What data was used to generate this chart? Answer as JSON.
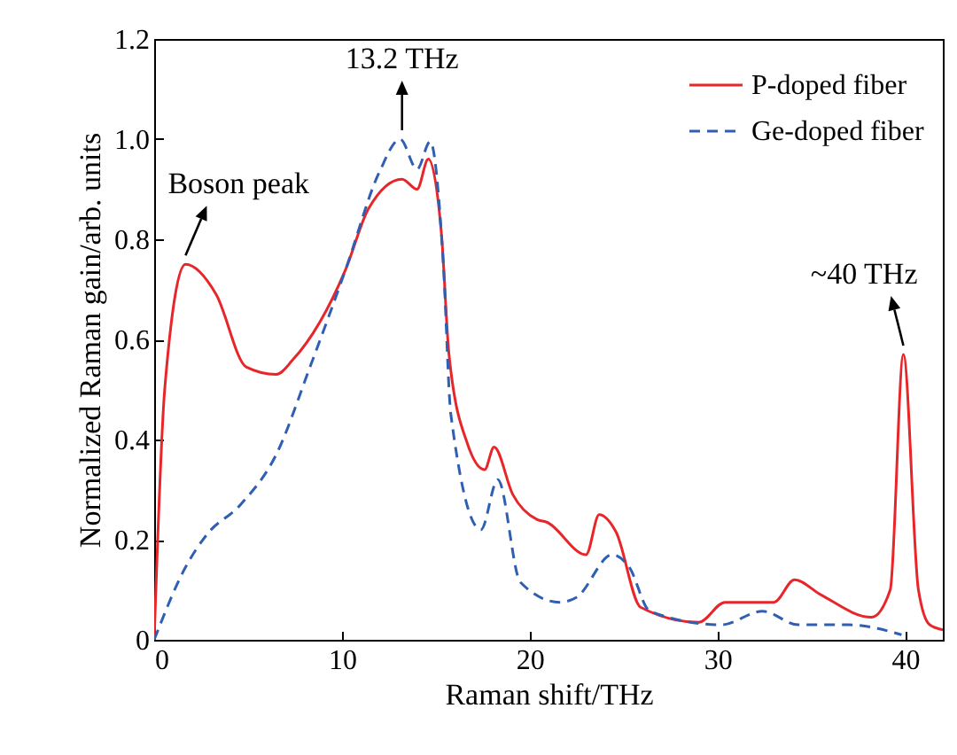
{
  "chart_data": {
    "type": "line",
    "xlabel": "Raman shift/THz",
    "ylabel": "Normalized Raman gain/arb. units",
    "xlim": [
      0,
      42
    ],
    "xticks": [
      0,
      10,
      20,
      30,
      40
    ],
    "ylim": [
      0,
      1.2
    ],
    "yticks": [
      0,
      0.2,
      0.4,
      0.6,
      0.8,
      {
        "value": 1,
        "label": "1.0"
      },
      1.2
    ],
    "grid": false,
    "legend": "top right",
    "annotations": [
      {
        "text": "Boson peak",
        "x": 1.67,
        "y": 0.75
      },
      {
        "text": "13.2 THz",
        "x": 13.2,
        "y": 1.0
      },
      {
        "text": "~40 THz",
        "x": 39.9,
        "y": 0.57
      }
    ],
    "series": [
      {
        "name": "P-doped fiber",
        "color": "#e8262a",
        "line_style": "solid",
        "x": [
          0,
          0.56,
          1.67,
          3.3,
          4.9,
          6.5,
          7.4,
          10.2,
          11.4,
          13.2,
          14,
          14.6,
          15.3,
          15.7,
          16.7,
          17.6,
          18.1,
          19.1,
          20.4,
          20.9,
          23,
          23.7,
          24.6,
          25.9,
          29,
          30.4,
          33,
          34.1,
          35.5,
          38.2,
          39.2,
          39.9,
          40.7,
          41.3,
          42
        ],
        "values": [
          0,
          0.5,
          0.75,
          0.69,
          0.545,
          0.53,
          0.56,
          0.74,
          0.86,
          0.92,
          0.9,
          0.96,
          0.81,
          0.57,
          0.39,
          0.34,
          0.385,
          0.29,
          0.24,
          0.235,
          0.17,
          0.25,
          0.215,
          0.065,
          0.035,
          0.075,
          0.075,
          0.12,
          0.09,
          0.045,
          0.1,
          0.57,
          0.1,
          0.03,
          0.02
        ]
      },
      {
        "name": "Ge-doped fiber",
        "color": "#2f5fb3",
        "line_style": "dashed",
        "x": [
          0,
          1.67,
          2.8,
          4.6,
          6.5,
          8.3,
          10.2,
          12,
          13.1,
          14,
          14.7,
          15.4,
          15.8,
          17.4,
          18.3,
          19.5,
          21.6,
          22.5,
          24.4,
          25.3,
          26.4,
          30.2,
          32.4,
          34.3,
          37,
          39.8
        ],
        "values": [
          0,
          0.145,
          0.21,
          0.27,
          0.37,
          0.545,
          0.74,
          0.935,
          1.0,
          0.94,
          0.995,
          0.75,
          0.45,
          0.22,
          0.32,
          0.115,
          0.075,
          0.085,
          0.17,
          0.145,
          0.057,
          0.03,
          0.057,
          0.03,
          0.03,
          0.01
        ]
      }
    ]
  }
}
